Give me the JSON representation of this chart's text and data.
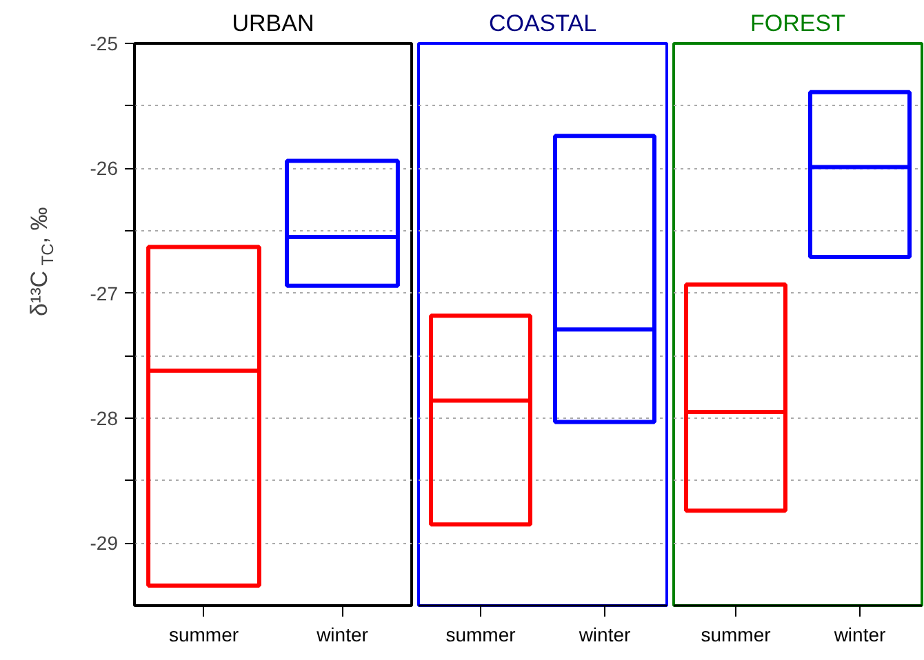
{
  "chart_data": [
    {
      "type": "box",
      "title": "URBAN",
      "ylabel": "δ¹³C$_{TC}$, ‰",
      "categories": [
        "summer",
        "winter"
      ],
      "colors": [
        "#ff0000",
        "#0000ff"
      ],
      "boxes": [
        {
          "low": -29.34,
          "q1": -29.34,
          "median": -27.62,
          "q3": -26.63,
          "high": -26.63
        },
        {
          "low": -26.94,
          "q1": -26.94,
          "median": -26.55,
          "q3": -25.94,
          "high": -25.94
        }
      ],
      "ylim": [
        -29.5,
        -25
      ],
      "yticks": [
        -29,
        {
          "value": -28.5,
          "label": null
        },
        -28,
        {
          "value": -27.5,
          "label": null
        },
        -27,
        {
          "value": -26.5,
          "label": null
        },
        -26,
        {
          "value": -25.5,
          "label": null
        },
        -25
      ],
      "grid": "y"
    },
    {
      "type": "box",
      "title": "COASTAL",
      "categories": [
        "summer",
        "winter"
      ],
      "colors": [
        "#ff0000",
        "#0000ff"
      ],
      "boxes": [
        {
          "low": -28.85,
          "q1": -28.85,
          "median": -27.86,
          "q3": -27.18,
          "high": -27.18
        },
        {
          "low": -28.03,
          "q1": -28.03,
          "median": -27.29,
          "q3": -25.74,
          "high": -25.74
        }
      ],
      "ylim": [
        -29.5,
        -25
      ],
      "yticks": [
        -29,
        {
          "value": -28.5,
          "label": null
        },
        -28,
        {
          "value": -27.5,
          "label": null
        },
        -27,
        {
          "value": -26.5,
          "label": null
        },
        -26,
        {
          "value": -25.5,
          "label": null
        },
        -25
      ],
      "grid": "y",
      "tick_labels": "x"
    },
    {
      "type": "box",
      "title": "FOREST",
      "categories": [
        "summer",
        "winter"
      ],
      "colors": [
        "#ff0000",
        "#0000ff"
      ],
      "boxes": [
        {
          "low": -28.74,
          "q1": -28.74,
          "median": -27.95,
          "q3": -26.93,
          "high": -26.93
        },
        {
          "low": -26.71,
          "q1": -26.71,
          "median": -25.99,
          "q3": -25.39,
          "high": -25.39
        }
      ],
      "ylim": [
        -29.5,
        -25
      ],
      "yticks": [
        -29,
        {
          "value": -28.5,
          "label": null
        },
        -28,
        {
          "value": -27.5,
          "label": null
        },
        -27,
        {
          "value": -26.5,
          "label": null
        },
        -26,
        {
          "value": -25.5,
          "label": null
        },
        -25
      ],
      "grid": "y",
      "tick_labels": "x"
    }
  ]
}
